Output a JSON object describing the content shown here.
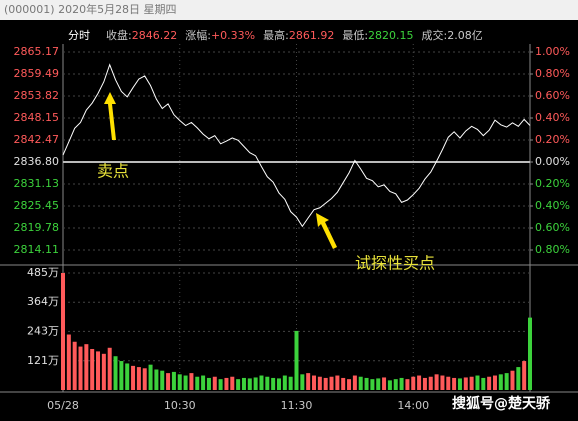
{
  "top_bar": {
    "text": "(000001) 2020年5月28日 星期四"
  },
  "header": {
    "title": "分时",
    "stats": [
      {
        "label": "收盘:",
        "value": "2846.22",
        "color": "#ff5a5a"
      },
      {
        "label": "涨幅:",
        "value": "+0.33%",
        "color": "#ff5a5a"
      },
      {
        "label": "最高:",
        "value": "2861.92",
        "color": "#ff5a5a"
      },
      {
        "label": "最低:",
        "value": "2820.15",
        "color": "#3cd23c"
      },
      {
        "label": "成交:",
        "value": "2.08亿",
        "color": "#c8c8c8"
      }
    ]
  },
  "annotations": [
    {
      "text": "卖点"
    },
    {
      "text": "试探性买点"
    }
  ],
  "watermark": "搜狐号@楚天骄",
  "chart_data": {
    "type": "line",
    "x": [
      0,
      3,
      6,
      9,
      12,
      15,
      18,
      21,
      24,
      27,
      30,
      33,
      36,
      39,
      42,
      45,
      48,
      51,
      54,
      57,
      60,
      63,
      66,
      69,
      72,
      75,
      78,
      81,
      84,
      87,
      90,
      93,
      96,
      99,
      102,
      105,
      108,
      111,
      114,
      117,
      120,
      123,
      126,
      129,
      132,
      135,
      138,
      141,
      144,
      147,
      150,
      153,
      156,
      159,
      162,
      165,
      168,
      171,
      174,
      177,
      180,
      183,
      186,
      189,
      192,
      195,
      198,
      201,
      204,
      207,
      210,
      213,
      216,
      219,
      222,
      225,
      228,
      231,
      234,
      237,
      240
    ],
    "values": [
      2838.6,
      2842.0,
      2845.5,
      2847.0,
      2850.2,
      2852.0,
      2854.5,
      2857.5,
      2861.9,
      2858.0,
      2855.0,
      2853.6,
      2856.0,
      2858.2,
      2859.0,
      2856.5,
      2853.0,
      2850.6,
      2851.8,
      2849.0,
      2847.5,
      2846.2,
      2847.0,
      2845.6,
      2844.0,
      2842.8,
      2843.6,
      2841.5,
      2842.2,
      2843.0,
      2842.4,
      2840.8,
      2839.2,
      2838.4,
      2835.6,
      2833.0,
      2831.6,
      2828.8,
      2827.2,
      2824.0,
      2822.6,
      2820.2,
      2822.4,
      2824.5,
      2825.0,
      2826.2,
      2827.4,
      2829.0,
      2831.5,
      2834.0,
      2837.2,
      2835.0,
      2832.6,
      2832.0,
      2830.4,
      2830.9,
      2829.2,
      2828.6,
      2826.4,
      2827.0,
      2828.4,
      2830.0,
      2832.4,
      2834.2,
      2837.0,
      2840.0,
      2843.2,
      2844.6,
      2843.0,
      2844.8,
      2846.0,
      2845.2,
      2843.6,
      2845.0,
      2847.6,
      2846.4,
      2845.8,
      2846.9,
      2846.0,
      2847.8,
      2846.22
    ],
    "color": "#ffffff",
    "xlim": [
      0,
      240
    ],
    "xticks": [
      {
        "value": 0,
        "label": "05/28"
      },
      {
        "value": 60,
        "label": "10:30"
      },
      {
        "value": 120,
        "label": "11:30"
      },
      {
        "value": 180,
        "label": "14:00"
      }
    ],
    "ylim": [
      2814.11,
      2865.17
    ],
    "yticks": [
      2865.17,
      2859.49,
      2853.82,
      2848.15,
      2842.47,
      {
        "value": 2836.8,
        "label": "2836.80"
      },
      2831.13,
      2825.45,
      2819.78,
      2814.11
    ],
    "y2lim": [
      -0.8,
      1.0
    ],
    "y2ticks": [
      {
        "value": 1.0,
        "label": "1.00%"
      },
      {
        "value": 0.8,
        "label": "0.80%"
      },
      {
        "value": 0.6,
        "label": "0.60%"
      },
      {
        "value": 0.4,
        "label": "0.40%"
      },
      {
        "value": 0.2,
        "label": "0.20%"
      },
      {
        "value": 0,
        "label": "0.00%"
      },
      {
        "value": -0.2,
        "label": "0.20%"
      },
      {
        "value": -0.4,
        "label": "0.40%"
      },
      {
        "value": -0.6,
        "label": "0.60%"
      },
      {
        "value": -0.8,
        "label": "0.80%"
      }
    ],
    "up_color": "#ff5a5a",
    "down_color": "#3cd23c",
    "flat_color": "#e0e0e0",
    "grid": true,
    "volume": {
      "values": [
        485,
        230,
        200,
        180,
        190,
        170,
        160,
        150,
        175,
        140,
        120,
        110,
        100,
        95,
        90,
        105,
        85,
        80,
        70,
        75,
        65,
        60,
        70,
        55,
        60,
        50,
        55,
        45,
        50,
        55,
        45,
        50,
        48,
        52,
        60,
        55,
        50,
        48,
        60,
        55,
        245,
        65,
        70,
        60,
        55,
        50,
        55,
        60,
        50,
        45,
        60,
        55,
        50,
        45,
        48,
        52,
        40,
        45,
        50,
        45,
        55,
        60,
        50,
        55,
        65,
        60,
        55,
        50,
        48,
        52,
        55,
        60,
        50,
        55,
        60,
        65,
        70,
        80,
        95,
        120,
        300
      ],
      "ylim": [
        0,
        485
      ],
      "yticks": [
        {
          "value": 485,
          "label": "485万"
        },
        {
          "value": 364,
          "label": "364万"
        },
        {
          "value": 243,
          "label": "243万"
        },
        {
          "value": 121,
          "label": "121万"
        }
      ]
    }
  }
}
